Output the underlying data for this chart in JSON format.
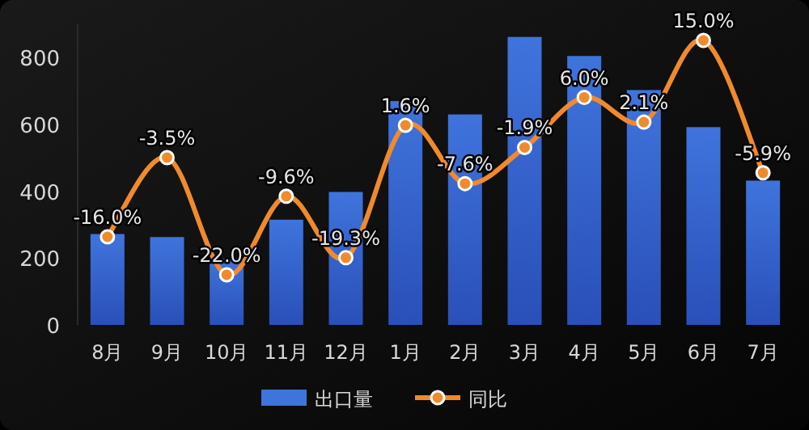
{
  "chart_data": {
    "type": "bar",
    "categories": [
      "8月",
      "9月",
      "10月",
      "11月",
      "12月",
      "1月",
      "2月",
      "3月",
      "4月",
      "5月",
      "6月",
      "7月"
    ],
    "series": [
      {
        "name": "出口量",
        "color": "#3f74dc",
        "values": [
          272,
          263,
          199,
          315,
          398,
          670,
          630,
          862,
          805,
          703,
          592,
          432
        ]
      },
      {
        "name": "同比",
        "type": "line",
        "axis": "y2",
        "color": "#f08a2c",
        "marker": "circle",
        "values": [
          -16.0,
          -3.5,
          -22.0,
          -9.6,
          -19.3,
          1.6,
          -7.6,
          -1.9,
          6.0,
          2.1,
          15.0,
          -5.9
        ],
        "value_labels": [
          "-16.0%",
          "-3.5%",
          "-22.0%",
          "-9.6%",
          "-19.3%",
          "1.6%",
          "-7.6%",
          "-1.9%",
          "6.0%",
          "2.1%",
          "15.0%",
          "-5.9%"
        ]
      }
    ],
    "ylim": [
      0,
      900
    ],
    "yticks": [
      0,
      200,
      400,
      600,
      800
    ],
    "grid": false,
    "legend": "bottom"
  }
}
